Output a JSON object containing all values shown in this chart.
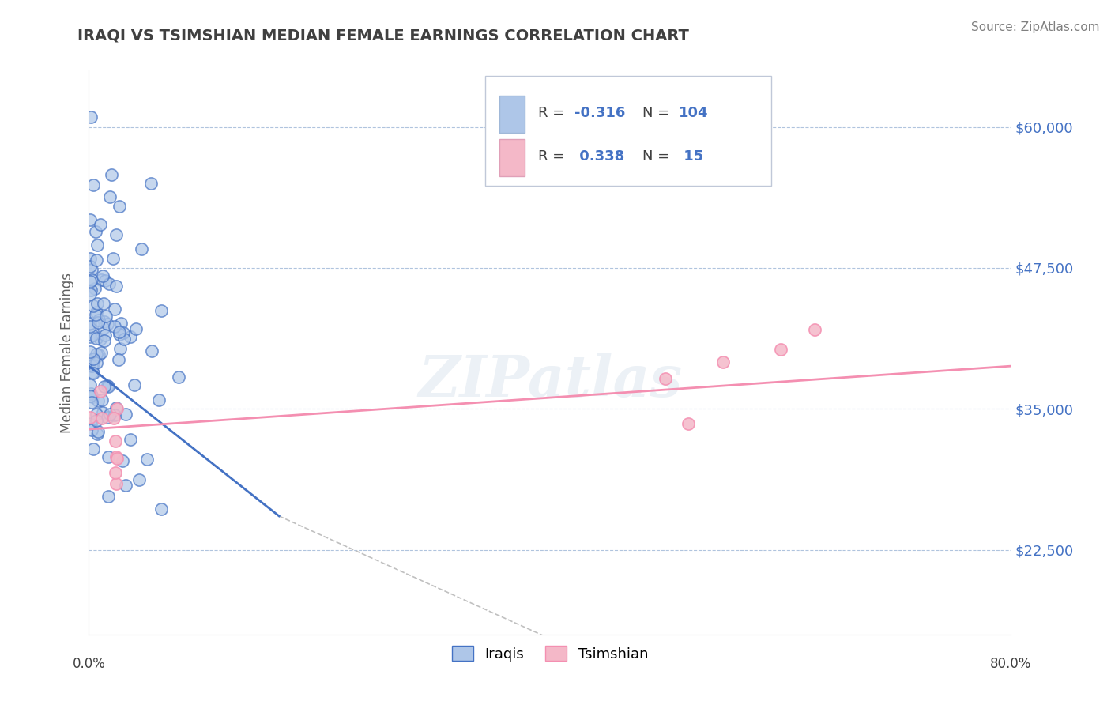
{
  "title": "IRAQI VS TSIMSHIAN MEDIAN FEMALE EARNINGS CORRELATION CHART",
  "source": "Source: ZipAtlas.com",
  "ylabel": "Median Female Earnings",
  "ytick_labels": [
    "$22,500",
    "$35,000",
    "$47,500",
    "$60,000"
  ],
  "ytick_values": [
    22500,
    35000,
    47500,
    60000
  ],
  "watermark": "ZIPatlas",
  "iraqis_color": "#4472c4",
  "tsimshian_color": "#f48fb1",
  "iraqis_scatter_color": "#aec6e8",
  "tsimshian_scatter_color": "#f4b8c8",
  "xmin": 0.0,
  "xmax": 0.8,
  "ymin": 15000,
  "ymax": 65000,
  "background_color": "#ffffff",
  "title_color": "#404040",
  "source_color": "#808080"
}
